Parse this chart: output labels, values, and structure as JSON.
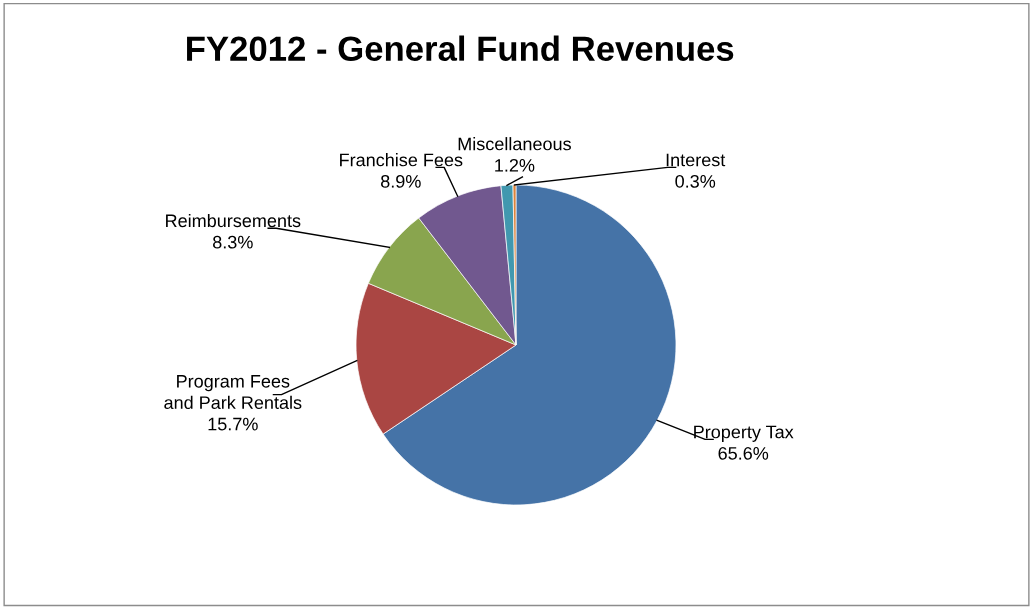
{
  "chart_data": {
    "type": "pie",
    "title": "FY2012 - General Fund Revenues",
    "categories": [
      "Property Tax",
      "Program Fees\nand Park Rentals",
      "Reimbursements",
      "Franchise Fees",
      "Miscellaneous",
      "Interest"
    ],
    "values": [
      65.6,
      15.7,
      8.3,
      8.9,
      1.2,
      0.3
    ],
    "colors": [
      "#4573a7",
      "#aa4643",
      "#89a54e",
      "#71588f",
      "#4198af",
      "#db843d"
    ],
    "value_labels": [
      "65.6%",
      "15.7%",
      "8.3%",
      "8.9%",
      "1.2%",
      "0.3%"
    ],
    "legend": false
  }
}
